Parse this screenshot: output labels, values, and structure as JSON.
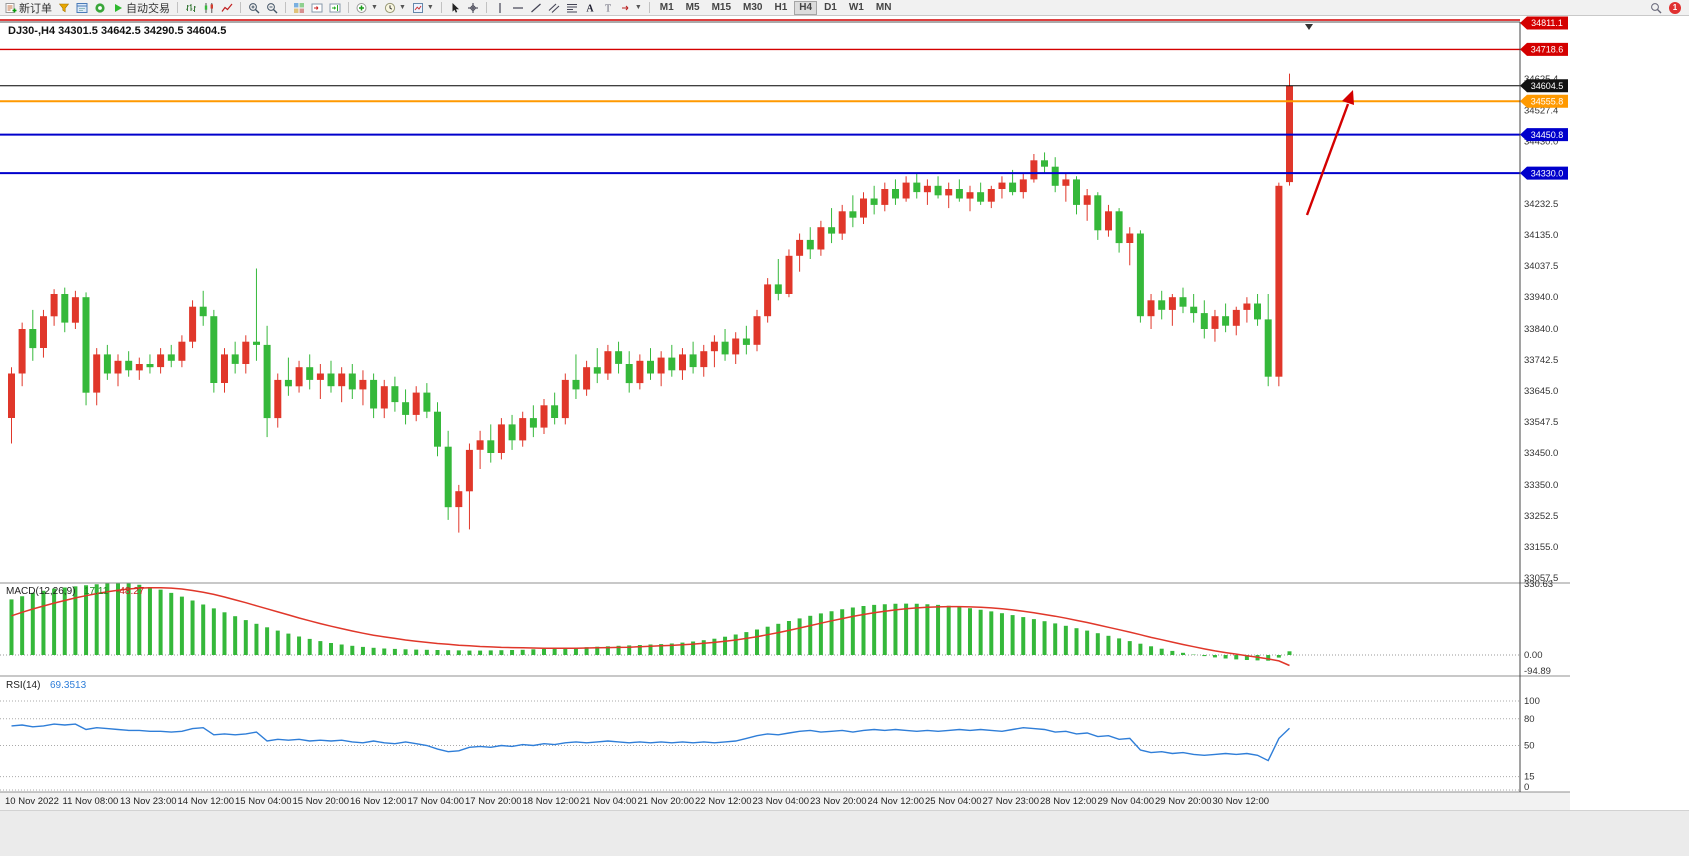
{
  "toolbar": {
    "new_order": "新订单",
    "auto_trading": "自动交易",
    "timeframes": [
      "M1",
      "M5",
      "M15",
      "M30",
      "H1",
      "H4",
      "D1",
      "W1",
      "MN"
    ],
    "active_timeframe": "H4",
    "notification_count": "1",
    "icons": [
      "new-order-icon",
      "market-watch-icon",
      "navigator-icon",
      "terminal-icon",
      "play-icon",
      "bar-chart-icon",
      "candlestick-icon",
      "line-chart-icon",
      "zoom-in-icon",
      "zoom-out-icon",
      "tile-windows-icon",
      "auto-scroll-icon",
      "chart-shift-icon",
      "indicators-icon",
      "periods-icon",
      "templates-icon",
      "cursor-icon",
      "crosshair-icon",
      "vertical-line-icon",
      "horizontal-line-icon",
      "trendline-icon",
      "channel-icon",
      "fibonacci-icon",
      "text-icon",
      "label-icon",
      "arrows-icon",
      "search-icon"
    ]
  },
  "chart": {
    "symbol": "DJ30-",
    "period": "H4",
    "title_text": "DJ30-,H4  34301.5 34642.5 34290.5 34604.5",
    "ohlc": {
      "open": "34301.5",
      "high": "34642.5",
      "low": "34290.5",
      "close": "34604.5"
    },
    "current_price": "34604.5",
    "price_levels": [
      {
        "price": 34811.1,
        "label": "34811.1",
        "color": "#d40000",
        "badge_bg": "#d40000",
        "width": 1.4
      },
      {
        "price": 34718.6,
        "label": "34718.6",
        "color": "#d40000",
        "badge_bg": "#d40000",
        "width": 1.4
      },
      {
        "price": 34604.5,
        "label": "34604.5",
        "color": "#000000",
        "badge_bg": "#111111",
        "width": 1
      },
      {
        "price": 34555.8,
        "label": "34555.8",
        "color": "#ff9900",
        "badge_bg": "#ff9900",
        "width": 2
      },
      {
        "price": 34450.8,
        "label": "34450.8",
        "color": "#0000cc",
        "badge_bg": "#0000cc",
        "width": 2
      },
      {
        "price": 34330.0,
        "label": "34330.0",
        "color": "#0000cc",
        "badge_bg": "#0000cc",
        "width": 2
      }
    ],
    "y_axis_labels": [
      "34625.4",
      "34527.4",
      "34430.0",
      "34232.5",
      "34135.0",
      "34037.5",
      "33940.0",
      "33840.0",
      "33742.5",
      "33645.0",
      "33547.5",
      "33450.0",
      "33350.0",
      "33252.5",
      "33155.0",
      "33057.5"
    ],
    "annotation": {
      "type": "up-arrow",
      "color": "#d40000"
    }
  },
  "chart_data": {
    "type": "candlestick",
    "symbol": "DJ30-",
    "timeframe": "H4",
    "up_color": "#e0372a",
    "down_color": "#35b83a",
    "x_labels": [
      "10 Nov 2022",
      "11 Nov 08:00",
      "13 Nov 23:00",
      "14 Nov 12:00",
      "15 Nov 04:00",
      "15 Nov 20:00",
      "16 Nov 12:00",
      "17 Nov 04:00",
      "17 Nov 20:00",
      "18 Nov 12:00",
      "21 Nov 04:00",
      "21 Nov 20:00",
      "22 Nov 12:00",
      "23 Nov 04:00",
      "23 Nov 20:00",
      "24 Nov 12:00",
      "25 Nov 04:00",
      "27 Nov 23:00",
      "28 Nov 12:00",
      "29 Nov 04:00",
      "29 Nov 20:00",
      "30 Nov 12:00"
    ],
    "candles_ohlc": [
      [
        33560,
        33720,
        33480,
        33700
      ],
      [
        33700,
        33860,
        33660,
        33840
      ],
      [
        33840,
        33900,
        33740,
        33780
      ],
      [
        33780,
        33900,
        33750,
        33880
      ],
      [
        33880,
        33965,
        33850,
        33950
      ],
      [
        33950,
        33970,
        33830,
        33860
      ],
      [
        33860,
        33960,
        33840,
        33940
      ],
      [
        33940,
        33955,
        33600,
        33640
      ],
      [
        33640,
        33780,
        33600,
        33760
      ],
      [
        33760,
        33790,
        33680,
        33700
      ],
      [
        33700,
        33760,
        33660,
        33740
      ],
      [
        33740,
        33770,
        33690,
        33710
      ],
      [
        33710,
        33750,
        33680,
        33730
      ],
      [
        33730,
        33760,
        33700,
        33720
      ],
      [
        33720,
        33780,
        33700,
        33760
      ],
      [
        33760,
        33790,
        33720,
        33740
      ],
      [
        33740,
        33820,
        33720,
        33800
      ],
      [
        33800,
        33930,
        33780,
        33910
      ],
      [
        33910,
        33960,
        33850,
        33880
      ],
      [
        33880,
        33900,
        33640,
        33670
      ],
      [
        33670,
        33780,
        33640,
        33760
      ],
      [
        33760,
        33800,
        33700,
        33730
      ],
      [
        33730,
        33820,
        33700,
        33800
      ],
      [
        33800,
        34030,
        33740,
        33790
      ],
      [
        33790,
        33850,
        33500,
        33560
      ],
      [
        33560,
        33700,
        33530,
        33680
      ],
      [
        33680,
        33750,
        33630,
        33660
      ],
      [
        33660,
        33740,
        33640,
        33720
      ],
      [
        33720,
        33760,
        33650,
        33680
      ],
      [
        33680,
        33730,
        33620,
        33700
      ],
      [
        33700,
        33740,
        33640,
        33660
      ],
      [
        33660,
        33720,
        33610,
        33700
      ],
      [
        33700,
        33730,
        33620,
        33650
      ],
      [
        33650,
        33710,
        33600,
        33680
      ],
      [
        33680,
        33700,
        33560,
        33590
      ],
      [
        33590,
        33680,
        33560,
        33660
      ],
      [
        33660,
        33690,
        33580,
        33610
      ],
      [
        33610,
        33650,
        33540,
        33570
      ],
      [
        33570,
        33660,
        33550,
        33640
      ],
      [
        33640,
        33670,
        33560,
        33580
      ],
      [
        33580,
        33610,
        33440,
        33470
      ],
      [
        33470,
        33520,
        33240,
        33280
      ],
      [
        33280,
        33350,
        33200,
        33330
      ],
      [
        33330,
        33480,
        33210,
        33460
      ],
      [
        33460,
        33520,
        33400,
        33490
      ],
      [
        33490,
        33540,
        33420,
        33450
      ],
      [
        33450,
        33560,
        33430,
        33540
      ],
      [
        33540,
        33570,
        33460,
        33490
      ],
      [
        33490,
        33580,
        33470,
        33560
      ],
      [
        33560,
        33600,
        33500,
        33530
      ],
      [
        33530,
        33620,
        33510,
        33600
      ],
      [
        33600,
        33640,
        33540,
        33560
      ],
      [
        33560,
        33700,
        33540,
        33680
      ],
      [
        33680,
        33760,
        33620,
        33650
      ],
      [
        33650,
        33740,
        33630,
        33720
      ],
      [
        33720,
        33780,
        33670,
        33700
      ],
      [
        33700,
        33790,
        33680,
        33770
      ],
      [
        33770,
        33800,
        33700,
        33730
      ],
      [
        33730,
        33770,
        33640,
        33670
      ],
      [
        33670,
        33760,
        33650,
        33740
      ],
      [
        33740,
        33780,
        33680,
        33700
      ],
      [
        33700,
        33770,
        33660,
        33750
      ],
      [
        33750,
        33790,
        33690,
        33710
      ],
      [
        33710,
        33780,
        33680,
        33760
      ],
      [
        33760,
        33800,
        33700,
        33720
      ],
      [
        33720,
        33790,
        33690,
        33770
      ],
      [
        33770,
        33820,
        33720,
        33800
      ],
      [
        33800,
        33840,
        33740,
        33760
      ],
      [
        33760,
        33830,
        33730,
        33810
      ],
      [
        33810,
        33850,
        33760,
        33790
      ],
      [
        33790,
        33900,
        33770,
        33880
      ],
      [
        33880,
        34000,
        33860,
        33980
      ],
      [
        33980,
        34060,
        33930,
        33950
      ],
      [
        33950,
        34090,
        33940,
        34070
      ],
      [
        34070,
        34140,
        34020,
        34120
      ],
      [
        34120,
        34160,
        34060,
        34090
      ],
      [
        34090,
        34180,
        34070,
        34160
      ],
      [
        34160,
        34220,
        34110,
        34140
      ],
      [
        34140,
        34230,
        34120,
        34210
      ],
      [
        34210,
        34260,
        34160,
        34190
      ],
      [
        34190,
        34270,
        34170,
        34250
      ],
      [
        34250,
        34290,
        34200,
        34230
      ],
      [
        34230,
        34300,
        34210,
        34280
      ],
      [
        34280,
        34310,
        34230,
        34250
      ],
      [
        34250,
        34320,
        34240,
        34300
      ],
      [
        34300,
        34330,
        34250,
        34270
      ],
      [
        34270,
        34310,
        34230,
        34290
      ],
      [
        34290,
        34320,
        34250,
        34260
      ],
      [
        34260,
        34300,
        34220,
        34280
      ],
      [
        34280,
        34310,
        34240,
        34250
      ],
      [
        34250,
        34290,
        34210,
        34270
      ],
      [
        34270,
        34300,
        34230,
        34240
      ],
      [
        34240,
        34290,
        34220,
        34280
      ],
      [
        34280,
        34320,
        34250,
        34300
      ],
      [
        34300,
        34340,
        34260,
        34270
      ],
      [
        34270,
        34330,
        34250,
        34310
      ],
      [
        34310,
        34390,
        34300,
        34370
      ],
      [
        34370,
        34395,
        34330,
        34350
      ],
      [
        34350,
        34380,
        34270,
        34290
      ],
      [
        34290,
        34330,
        34240,
        34310
      ],
      [
        34310,
        34320,
        34200,
        34230
      ],
      [
        34230,
        34280,
        34180,
        34260
      ],
      [
        34260,
        34270,
        34120,
        34150
      ],
      [
        34150,
        34230,
        34130,
        34210
      ],
      [
        34210,
        34220,
        34080,
        34110
      ],
      [
        34110,
        34160,
        34040,
        34140
      ],
      [
        34140,
        34150,
        33860,
        33880
      ],
      [
        33880,
        33950,
        33840,
        33930
      ],
      [
        33930,
        33960,
        33870,
        33900
      ],
      [
        33900,
        33950,
        33850,
        33940
      ],
      [
        33940,
        33970,
        33890,
        33910
      ],
      [
        33910,
        33950,
        33860,
        33890
      ],
      [
        33890,
        33930,
        33810,
        33840
      ],
      [
        33840,
        33900,
        33800,
        33880
      ],
      [
        33880,
        33920,
        33830,
        33850
      ],
      [
        33850,
        33910,
        33820,
        33900
      ],
      [
        33900,
        33940,
        33860,
        33920
      ],
      [
        33920,
        33950,
        33850,
        33870
      ],
      [
        33870,
        33950,
        33660,
        33690
      ],
      [
        33690,
        34300,
        33660,
        34290
      ],
      [
        34301.5,
        34642.5,
        34290.5,
        34604.5
      ]
    ],
    "indicators": {
      "macd": {
        "label": "MACD(12,26,9)",
        "value1": "17.11",
        "value2": "-48.27",
        "axis_labels": [
          "330.63",
          "0.00",
          "-94.89"
        ],
        "hist_color": "#35b83a",
        "signal_color": "#e0372a",
        "histogram": [
          255,
          270,
          285,
          295,
          305,
          310,
          315,
          320,
          325,
          328,
          330,
          328,
          322,
          312,
          300,
          285,
          268,
          250,
          232,
          214,
          196,
          178,
          160,
          143,
          127,
          112,
          98,
          85,
          74,
          64,
          55,
          48,
          42,
          37,
          33,
          30,
          28,
          26,
          25,
          24,
          23,
          22,
          21,
          20,
          20,
          21,
          22,
          23,
          24,
          26,
          28,
          30,
          32,
          34,
          36,
          38,
          40,
          42,
          44,
          46,
          48,
          50,
          53,
          57,
          62,
          68,
          75,
          84,
          94,
          105,
          117,
          130,
          143,
          156,
          168,
          180,
          191,
          201,
          210,
          218,
          225,
          230,
          233,
          235,
          236,
          235,
          233,
          230,
          226,
          221,
          215,
          208,
          200,
          192,
          183,
          174,
          165,
          155,
          145,
          134,
          123,
          112,
          100,
          88,
          76,
          64,
          52,
          40,
          29,
          19,
          10,
          2,
          -5,
          -11,
          -16,
          -20,
          -23,
          -25,
          -26,
          -12,
          17.11
        ],
        "signal": [
          180,
          196,
          211,
          225,
          238,
          250,
          262,
          272,
          282,
          290,
          297,
          303,
          307,
          309,
          309,
          307,
          303,
          296,
          288,
          278,
          266,
          253,
          240,
          226,
          212,
          198,
          184,
          170,
          157,
          144,
          132,
          121,
          110,
          100,
          91,
          83,
          76,
          69,
          63,
          58,
          53,
          49,
          45,
          42,
          39,
          37,
          35,
          34,
          33,
          32,
          31,
          31,
          31,
          31,
          32,
          33,
          34,
          35,
          36,
          38,
          40,
          42,
          44,
          47,
          50,
          54,
          58,
          63,
          69,
          76,
          84,
          93,
          103,
          113,
          124,
          135,
          146,
          157,
          167,
          177,
          186,
          194,
          201,
          207,
          212,
          216,
          219,
          221,
          222,
          222,
          221,
          219,
          216,
          212,
          207,
          201,
          194,
          186,
          178,
          169,
          159,
          149,
          138,
          127,
          116,
          105,
          93,
          81,
          70,
          59,
          48,
          38,
          28,
          19,
          11,
          4,
          -3,
          -10,
          -18,
          -27,
          -48.27
        ]
      },
      "rsi": {
        "label": "RSI(14)",
        "value_text": "69.3513",
        "axis_labels": [
          "100",
          "80",
          "50",
          "15",
          "0"
        ],
        "levels": [
          100,
          80,
          50,
          15,
          0
        ],
        "line_color": "#2f7ed8",
        "values": [
          72,
          73,
          71,
          72,
          74,
          73,
          74,
          68,
          70,
          69,
          68,
          67,
          67,
          66,
          66,
          65,
          66,
          69,
          70,
          62,
          63,
          62,
          63,
          65,
          55,
          57,
          56,
          57,
          55,
          56,
          55,
          56,
          54,
          53,
          55,
          53,
          52,
          54,
          52,
          50,
          46,
          43,
          44,
          48,
          49,
          48,
          50,
          49,
          51,
          50,
          52,
          51,
          53,
          54,
          53,
          54,
          55,
          54,
          53,
          54,
          53,
          54,
          53,
          54,
          53,
          54,
          53,
          54,
          55,
          58,
          61,
          63,
          62,
          64,
          66,
          67,
          65,
          66,
          67,
          65,
          67,
          68,
          67,
          68,
          67,
          66,
          67,
          66,
          67,
          68,
          67,
          68,
          67,
          66,
          68,
          70,
          69,
          68,
          65,
          66,
          63,
          64,
          60,
          61,
          57,
          58,
          45,
          42,
          43,
          41,
          42,
          40,
          39,
          40,
          41,
          40,
          41,
          39,
          33,
          58,
          69.3513
        ]
      }
    }
  }
}
